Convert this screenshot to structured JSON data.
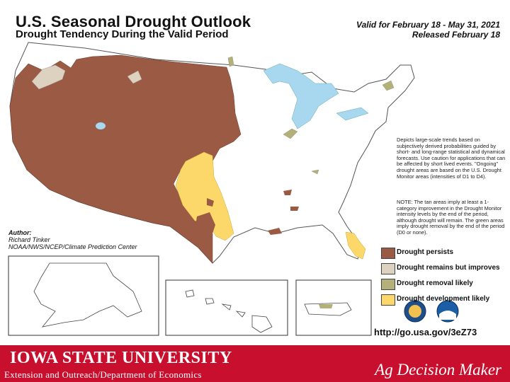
{
  "header": {
    "title": "U.S. Seasonal Drought Outlook",
    "subtitle": "Drought Tendency During the Valid Period",
    "valid_line": "Valid for February 18 - May 31, 2021",
    "released_line": "Released February 18"
  },
  "description": "Depicts large-scale trends based on subjectively derived probabilities guided by short- and long-range statistical and dynamical forecasts. Use caution for applications that can be affected by short lived events. \"Ongoing\" drought areas are based on the U.S. Drought Monitor areas (intensities of D1 to D4).",
  "note": "NOTE: The tan areas imply at least a 1-category improvement in the Drought Monitor intensity levels by the end of the period, although drought will remain. The green areas imply drought removal by the end of the period (D0 or none).",
  "author": {
    "label": "Author:",
    "name": "Richard Tinker",
    "org": "NOAA/NWS/NCEP/Climate Prediction Center"
  },
  "legend": [
    {
      "label": "Drought persists",
      "color": "#9b5a44"
    },
    {
      "label": "Drought remains but improves",
      "color": "#ddd1c0"
    },
    {
      "label": "Drought removal likely",
      "color": "#b4b07a"
    },
    {
      "label": "Drought development likely",
      "color": "#fcd86a"
    }
  ],
  "url": "http://go.usa.gov/3eZ73",
  "colors": {
    "persists": "#9b5a44",
    "improves": "#ddd1c0",
    "removal": "#b4b07a",
    "development": "#fcd86a",
    "water": "#a8d7f0",
    "footer": "#c8102e"
  },
  "footer": {
    "university": "IOWA STATE UNIVERSITY",
    "department": "Extension and Outreach/Department of Economics",
    "brand": "Ag Decision Maker"
  }
}
